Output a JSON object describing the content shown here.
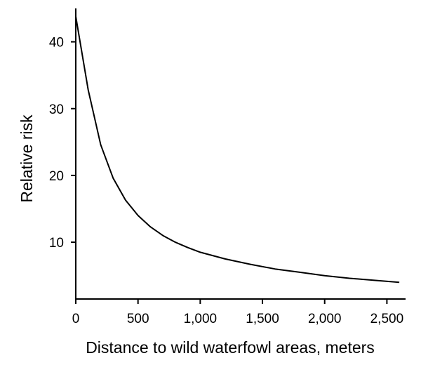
{
  "chart_data": {
    "type": "line",
    "title": "",
    "xlabel": "Distance to wild waterfowl areas, meters",
    "ylabel": "Relative risk",
    "xlim": [
      0,
      2650
    ],
    "ylim": [
      1.5,
      45
    ],
    "xticks": [
      0,
      500,
      1000,
      1500,
      2000,
      2500
    ],
    "xtick_labels": [
      "0",
      "500",
      "1,000",
      "1,500",
      "2,000",
      "2,500"
    ],
    "yticks": [
      10,
      20,
      30,
      40
    ],
    "ytick_labels": [
      "10",
      "20",
      "30",
      "40"
    ],
    "grid": false,
    "legend": "none",
    "series": [
      {
        "color": "#000000",
        "x": [
          0,
          100,
          200,
          300,
          400,
          500,
          600,
          700,
          800,
          900,
          1000,
          1200,
          1400,
          1600,
          1800,
          2000,
          2200,
          2400,
          2600
        ],
        "y": [
          43.8,
          32.8,
          24.6,
          19.6,
          16.3,
          14.0,
          12.3,
          11.0,
          10.0,
          9.2,
          8.5,
          7.5,
          6.7,
          6.0,
          5.5,
          5.0,
          4.6,
          4.3,
          4.0
        ]
      }
    ]
  }
}
